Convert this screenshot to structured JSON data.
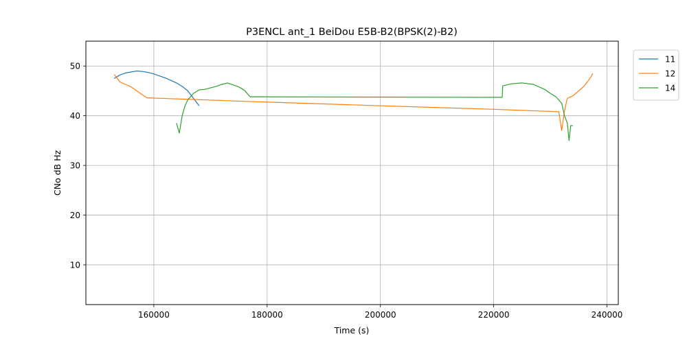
{
  "chart_data": {
    "type": "line",
    "title": "P3ENCL ant_1 BeiDou E5B-B2(BPSK(2)-B2)",
    "xlabel": "Time (s)",
    "ylabel": "CNo dB Hz",
    "xlim": [
      148000,
      242000
    ],
    "ylim": [
      2,
      55
    ],
    "xticks": [
      160000,
      180000,
      200000,
      220000,
      240000
    ],
    "yticks": [
      10,
      20,
      30,
      40,
      50
    ],
    "grid": true,
    "legend_position": "outside-top-right",
    "series": [
      {
        "name": "11",
        "color": "#1f77b4",
        "points": [
          [
            153000,
            47.5
          ],
          [
            154000,
            48.2
          ],
          [
            155000,
            48.6
          ],
          [
            156000,
            48.8
          ],
          [
            157000,
            49.0
          ],
          [
            158000,
            48.9
          ],
          [
            159000,
            48.7
          ],
          [
            160000,
            48.4
          ],
          [
            161000,
            48.0
          ],
          [
            162000,
            47.6
          ],
          [
            163000,
            47.1
          ],
          [
            164000,
            46.6
          ],
          [
            165000,
            45.9
          ],
          [
            166000,
            45.0
          ],
          [
            167000,
            43.5
          ],
          [
            168000,
            42.0
          ]
        ]
      },
      {
        "name": "12",
        "color": "#ff7f0e",
        "points": [
          [
            153000,
            48.3
          ],
          [
            154000,
            46.8
          ],
          [
            155000,
            46.3
          ],
          [
            156000,
            45.8
          ],
          [
            157000,
            45.0
          ],
          [
            158000,
            44.2
          ],
          [
            158800,
            43.6
          ],
          [
            176000,
            42.9
          ],
          [
            200000,
            42.0
          ],
          [
            220000,
            41.3
          ],
          [
            231500,
            40.8
          ],
          [
            232000,
            37.0
          ],
          [
            232500,
            41.0
          ],
          [
            233000,
            43.5
          ],
          [
            234000,
            44.0
          ],
          [
            235000,
            45.0
          ],
          [
            236000,
            46.0
          ],
          [
            237000,
            47.5
          ],
          [
            237500,
            48.5
          ]
        ]
      },
      {
        "name": "14",
        "color": "#2ca02c",
        "points": [
          [
            164000,
            38.5
          ],
          [
            164500,
            36.5
          ],
          [
            165000,
            40.0
          ],
          [
            165500,
            42.0
          ],
          [
            166000,
            43.2
          ],
          [
            167000,
            44.5
          ],
          [
            168000,
            45.2
          ],
          [
            169000,
            45.3
          ],
          [
            170000,
            45.6
          ],
          [
            171000,
            45.9
          ],
          [
            172000,
            46.3
          ],
          [
            173000,
            46.6
          ],
          [
            174000,
            46.2
          ],
          [
            175000,
            45.8
          ],
          [
            176000,
            45.1
          ],
          [
            177000,
            43.8
          ],
          [
            221500,
            43.7
          ],
          [
            221600,
            46.0
          ],
          [
            223000,
            46.4
          ],
          [
            225000,
            46.6
          ],
          [
            227000,
            46.3
          ],
          [
            229000,
            45.3
          ],
          [
            230000,
            44.5
          ],
          [
            231000,
            43.8
          ],
          [
            232000,
            42.5
          ],
          [
            232500,
            40.0
          ],
          [
            233000,
            38.5
          ],
          [
            233300,
            35.0
          ],
          [
            233600,
            38.0
          ],
          [
            234000,
            38.0
          ]
        ]
      }
    ]
  }
}
